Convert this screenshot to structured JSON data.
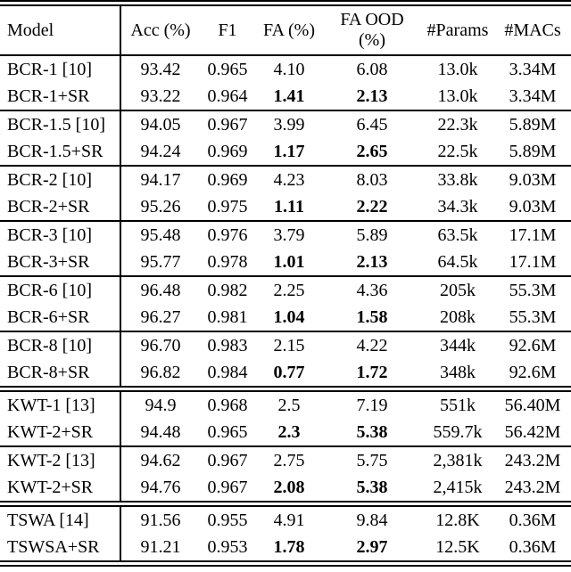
{
  "table": {
    "header": {
      "model": "Model",
      "acc": "Acc (%)",
      "f1": "F1",
      "fa": "FA (%)",
      "fa_ood_line1": "FA OOD",
      "fa_ood_line2": "(%)",
      "params": "#Params",
      "macs": "#MACs"
    },
    "blocks": [
      {
        "divider_after": "single",
        "rows": [
          {
            "model": "BCR-1 [10]",
            "acc": "93.42",
            "f1": "0.965",
            "fa": "4.10",
            "fa_bold": false,
            "fa_ood": "6.08",
            "fa_ood_bold": false,
            "params": "13.0k",
            "macs": "3.34M"
          },
          {
            "model": "BCR-1+SR",
            "acc": "93.22",
            "f1": "0.964",
            "fa": "1.41",
            "fa_bold": true,
            "fa_ood": "2.13",
            "fa_ood_bold": true,
            "params": "13.0k",
            "macs": "3.34M"
          }
        ]
      },
      {
        "divider_after": "single",
        "rows": [
          {
            "model": "BCR-1.5 [10]",
            "acc": "94.05",
            "f1": "0.967",
            "fa": "3.99",
            "fa_bold": false,
            "fa_ood": "6.45",
            "fa_ood_bold": false,
            "params": "22.3k",
            "macs": "5.89M"
          },
          {
            "model": "BCR-1.5+SR",
            "acc": "94.24",
            "f1": "0.969",
            "fa": "1.17",
            "fa_bold": true,
            "fa_ood": "2.65",
            "fa_ood_bold": true,
            "params": "22.5k",
            "macs": "5.89M"
          }
        ]
      },
      {
        "divider_after": "single",
        "rows": [
          {
            "model": "BCR-2 [10]",
            "acc": "94.17",
            "f1": "0.969",
            "fa": "4.23",
            "fa_bold": false,
            "fa_ood": "8.03",
            "fa_ood_bold": false,
            "params": "33.8k",
            "macs": "9.03M"
          },
          {
            "model": "BCR-2+SR",
            "acc": "95.26",
            "f1": "0.975",
            "fa": "1.11",
            "fa_bold": true,
            "fa_ood": "2.22",
            "fa_ood_bold": true,
            "params": "34.3k",
            "macs": "9.03M"
          }
        ]
      },
      {
        "divider_after": "single",
        "rows": [
          {
            "model": "BCR-3 [10]",
            "acc": "95.48",
            "f1": "0.976",
            "fa": "3.79",
            "fa_bold": false,
            "fa_ood": "5.89",
            "fa_ood_bold": false,
            "params": "63.5k",
            "macs": "17.1M"
          },
          {
            "model": "BCR-3+SR",
            "acc": "95.77",
            "f1": "0.978",
            "fa": "1.01",
            "fa_bold": true,
            "fa_ood": "2.13",
            "fa_ood_bold": true,
            "params": "64.5k",
            "macs": "17.1M"
          }
        ]
      },
      {
        "divider_after": "single",
        "rows": [
          {
            "model": "BCR-6 [10]",
            "acc": "96.48",
            "f1": "0.982",
            "fa": "2.25",
            "fa_bold": false,
            "fa_ood": "4.36",
            "fa_ood_bold": false,
            "params": "205k",
            "macs": "55.3M"
          },
          {
            "model": "BCR-6+SR",
            "acc": "96.27",
            "f1": "0.981",
            "fa": "1.04",
            "fa_bold": true,
            "fa_ood": "1.58",
            "fa_ood_bold": true,
            "params": "208k",
            "macs": "55.3M"
          }
        ]
      },
      {
        "divider_after": "double",
        "rows": [
          {
            "model": "BCR-8 [10]",
            "acc": "96.70",
            "f1": "0.983",
            "fa": "2.15",
            "fa_bold": false,
            "fa_ood": "4.22",
            "fa_ood_bold": false,
            "params": "344k",
            "macs": "92.6M"
          },
          {
            "model": "BCR-8+SR",
            "acc": "96.82",
            "f1": "0.984",
            "fa": "0.77",
            "fa_bold": true,
            "fa_ood": "1.72",
            "fa_ood_bold": true,
            "params": "348k",
            "macs": "92.6M"
          }
        ]
      },
      {
        "divider_after": "single",
        "rows": [
          {
            "model": "KWT-1 [13]",
            "acc": "94.9",
            "f1": "0.968",
            "fa": "2.5",
            "fa_bold": false,
            "fa_ood": "7.19",
            "fa_ood_bold": false,
            "params": "551k",
            "macs": "56.40M"
          },
          {
            "model": "KWT-2+SR",
            "acc": "94.48",
            "f1": "0.965",
            "fa": "2.3",
            "fa_bold": true,
            "fa_ood": "5.38",
            "fa_ood_bold": true,
            "params": "559.7k",
            "macs": "56.42M"
          }
        ]
      },
      {
        "divider_after": "double",
        "rows": [
          {
            "model": "KWT-2 [13]",
            "acc": "94.62",
            "f1": "0.967",
            "fa": "2.75",
            "fa_bold": false,
            "fa_ood": "5.75",
            "fa_ood_bold": false,
            "params": "2,381k",
            "macs": "243.2M"
          },
          {
            "model": "KWT-2+SR",
            "acc": "94.76",
            "f1": "0.967",
            "fa": "2.08",
            "fa_bold": true,
            "fa_ood": "5.38",
            "fa_ood_bold": true,
            "params": "2,415k",
            "macs": "243.2M"
          }
        ]
      },
      {
        "divider_after": "double",
        "rows": [
          {
            "model": "TSWA [14]",
            "acc": "91.56",
            "f1": "0.955",
            "fa": "4.91",
            "fa_bold": false,
            "fa_ood": "9.84",
            "fa_ood_bold": false,
            "params": "12.8K",
            "macs": "0.36M"
          },
          {
            "model": "TSWSA+SR",
            "acc": "91.21",
            "f1": "0.953",
            "fa": "1.78",
            "fa_bold": true,
            "fa_ood": "2.97",
            "fa_ood_bold": true,
            "params": "12.5K",
            "macs": "0.36M"
          }
        ]
      }
    ]
  }
}
